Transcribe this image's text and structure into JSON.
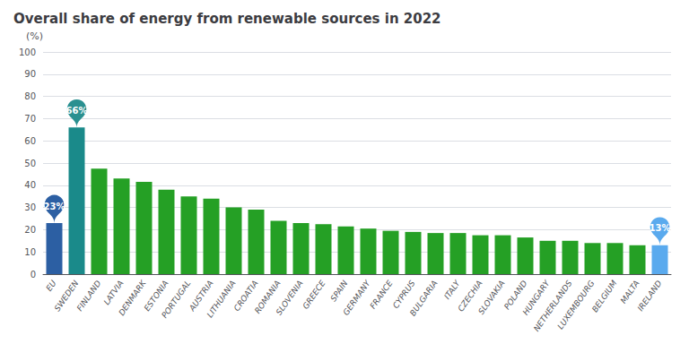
{
  "chart_data": {
    "type": "bar",
    "title": "Overall share of energy from renewable sources in 2022",
    "ylabel": "(%)",
    "categories": [
      "EU",
      "SWEDEN",
      "FINLAND",
      "LATVIA",
      "DENMARK",
      "ESTONIA",
      "PORTUGAL",
      "AUSTRIA",
      "LITHUANIA",
      "CROATIA",
      "ROMANIA",
      "SLOVENIA",
      "GREECE",
      "SPAIN",
      "GERMANY",
      "FRANCE",
      "CYPRUS",
      "BULGARIA",
      "ITALY",
      "CZECHIA",
      "SLOVAKIA",
      "POLAND",
      "HUNGARY",
      "NETHERLANDS",
      "LUXEMBOURG",
      "BELGIUM",
      "MALTA",
      "IRELAND"
    ],
    "values": [
      23,
      66,
      47.5,
      43,
      41.5,
      38,
      35,
      34,
      30,
      29,
      24,
      23,
      22.5,
      21.5,
      20.5,
      19.5,
      19,
      18.5,
      18.5,
      17.5,
      17.5,
      16.5,
      15,
      15,
      14,
      14,
      13,
      13
    ],
    "colors": [
      "#2c5fa3",
      "#1a8a8a",
      "#25a025",
      "#25a025",
      "#25a025",
      "#25a025",
      "#25a025",
      "#25a025",
      "#25a025",
      "#25a025",
      "#25a025",
      "#25a025",
      "#25a025",
      "#25a025",
      "#25a025",
      "#25a025",
      "#25a025",
      "#25a025",
      "#25a025",
      "#25a025",
      "#25a025",
      "#25a025",
      "#25a025",
      "#25a025",
      "#25a025",
      "#25a025",
      "#25a025",
      "#5aaaee"
    ],
    "ylim": [
      0,
      100
    ],
    "yticks": [
      0,
      10,
      20,
      30,
      40,
      50,
      60,
      70,
      80,
      90,
      100
    ],
    "grid": true,
    "annotations": [
      {
        "category": "EU",
        "value": 23,
        "text": "23%",
        "color": "#2c5fa3"
      },
      {
        "category": "SWEDEN",
        "value": 66,
        "text": "66%",
        "color": "#2a9090"
      },
      {
        "category": "IRELAND",
        "value": 13,
        "text": "13%",
        "color": "#5aaaee"
      }
    ]
  }
}
